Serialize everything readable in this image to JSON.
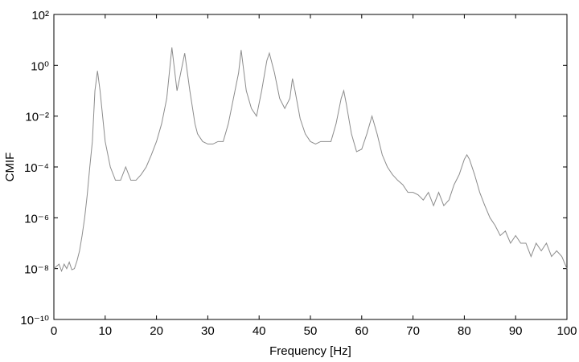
{
  "chart_data": {
    "type": "line",
    "xlabel": "Frequency [Hz]",
    "ylabel": "CMIF",
    "color": "#8c8c8c",
    "log_y": true,
    "x": [
      0,
      1,
      1.5,
      2,
      2.5,
      3,
      3.5,
      4,
      4.5,
      5,
      5.5,
      6,
      6.5,
      7,
      7.5,
      8,
      8.5,
      9,
      9.5,
      10,
      11,
      12,
      13,
      14,
      15,
      16,
      17,
      18,
      19,
      20,
      21,
      22,
      23,
      24,
      24.5,
      25.5,
      26.5,
      27.5,
      28,
      29,
      30,
      31,
      32,
      33,
      34,
      35,
      36,
      36.5,
      37.5,
      38.5,
      39.5,
      40.5,
      41.5,
      42,
      43,
      44,
      45,
      46,
      46.5,
      47,
      48,
      49,
      50,
      51,
      52,
      53,
      54,
      55,
      56,
      56.5,
      57,
      58,
      59,
      60,
      61,
      62,
      63,
      64,
      65,
      66,
      67,
      68,
      69,
      70,
      71,
      72,
      73,
      74,
      75,
      76,
      77,
      78,
      79,
      80,
      80.5,
      81,
      82,
      83,
      84,
      85,
      86,
      87,
      88,
      89,
      90,
      91,
      92,
      93,
      94,
      95,
      96,
      97,
      98,
      99,
      100
    ],
    "values": [
      1e-08,
      1.5e-08,
      8e-09,
      1.5e-08,
      1e-08,
      1.8e-08,
      9e-09,
      1e-08,
      2e-08,
      5e-08,
      2e-07,
      1e-06,
      8e-06,
      0.0001,
      0.001,
      0.1,
      0.6,
      0.1,
      0.01,
      0.001,
      0.0001,
      3e-05,
      3e-05,
      0.0001,
      3e-05,
      3e-05,
      5e-05,
      0.0001,
      0.0003,
      0.001,
      0.005,
      0.05,
      5,
      0.1,
      0.3,
      3,
      0.1,
      0.005,
      0.002,
      0.001,
      0.0008,
      0.0008,
      0.001,
      0.001,
      0.005,
      0.05,
      0.5,
      4,
      0.1,
      0.02,
      0.01,
      0.1,
      1.5,
      3,
      0.5,
      0.05,
      0.02,
      0.05,
      0.3,
      0.1,
      0.008,
      0.002,
      0.001,
      0.0008,
      0.001,
      0.001,
      0.001,
      0.005,
      0.05,
      0.1,
      0.03,
      0.002,
      0.0004,
      0.0005,
      0.002,
      0.01,
      0.002,
      0.0003,
      0.0001,
      5e-05,
      3e-05,
      2e-05,
      1e-05,
      1e-05,
      8e-06,
      5e-06,
      1e-05,
      3e-06,
      1e-05,
      3e-06,
      5e-06,
      2e-05,
      5e-05,
      0.0002,
      0.0003,
      0.0002,
      5e-05,
      1e-05,
      3e-06,
      1e-06,
      5e-07,
      2e-07,
      3e-07,
      1e-07,
      2e-07,
      1e-07,
      1e-07,
      3e-08,
      1e-07,
      5e-08,
      1e-07,
      3e-08,
      5e-08,
      3e-08,
      1e-08
    ],
    "xlim": [
      0,
      100
    ],
    "xticks": [
      0,
      10,
      20,
      30,
      40,
      50,
      60,
      70,
      80,
      90,
      100
    ],
    "ylim": [
      1e-10,
      100
    ],
    "yticks": [
      {
        "value": 1e-10,
        "label": "10⁻¹⁰"
      },
      {
        "value": 1e-08,
        "label": "10⁻⁸"
      },
      {
        "value": 1e-06,
        "label": "10⁻⁶"
      },
      {
        "value": 0.0001,
        "label": "10⁻⁴"
      },
      {
        "value": 0.01,
        "label": "10⁻²"
      },
      {
        "value": 1,
        "label": "10⁰"
      },
      {
        "value": 100,
        "label": "10²"
      }
    ]
  }
}
